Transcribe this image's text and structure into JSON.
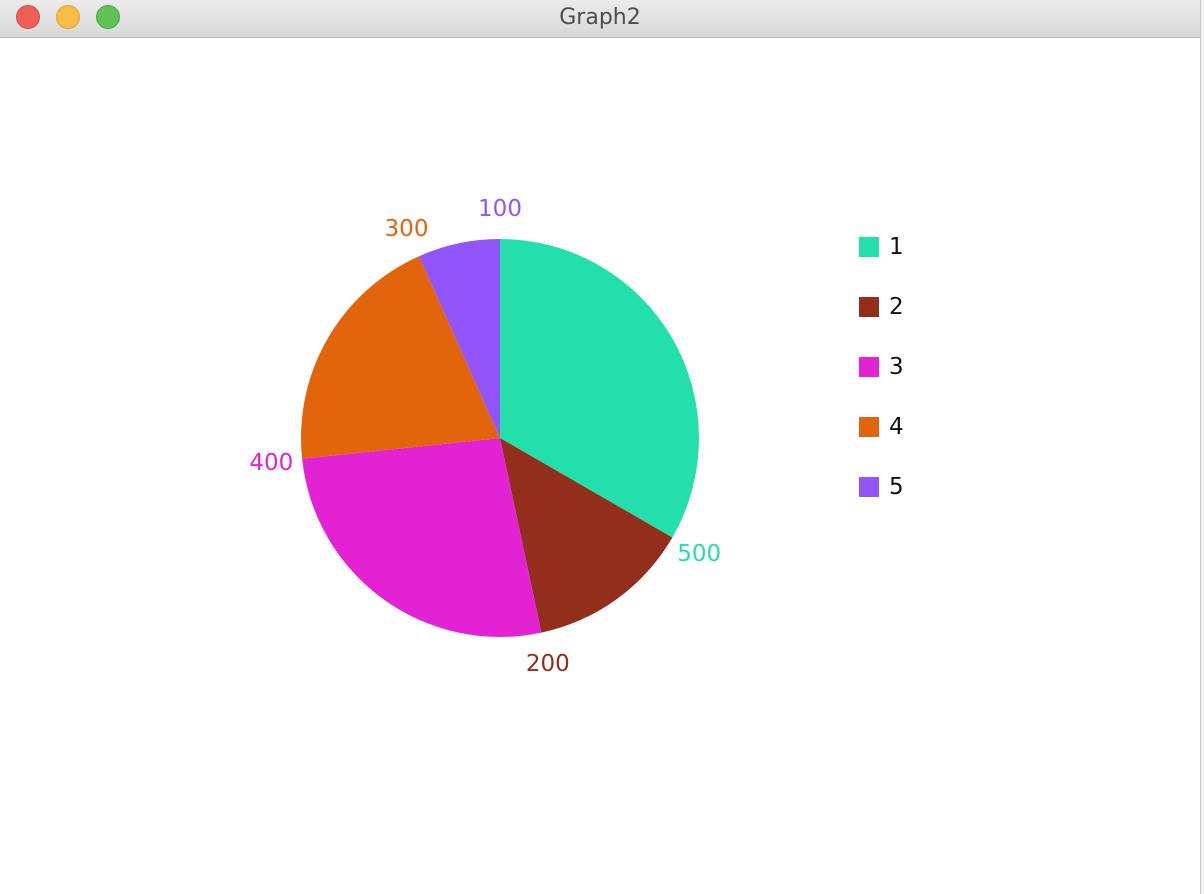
{
  "window": {
    "title": "Graph2"
  },
  "chart_data": {
    "type": "pie",
    "categories": [
      "1",
      "2",
      "3",
      "4",
      "5"
    ],
    "values": [
      500,
      200,
      400,
      300,
      100
    ],
    "data_labels": [
      "500",
      "200",
      "400",
      "300",
      "100"
    ],
    "colors": [
      "#22dfab",
      "#922e1b",
      "#e322d3",
      "#e2650b",
      "#9254fb"
    ],
    "start_angle_deg": 0,
    "direction": "clockwise",
    "legend": {
      "position": "right",
      "entries": [
        "1",
        "2",
        "3",
        "4",
        "5"
      ]
    }
  }
}
